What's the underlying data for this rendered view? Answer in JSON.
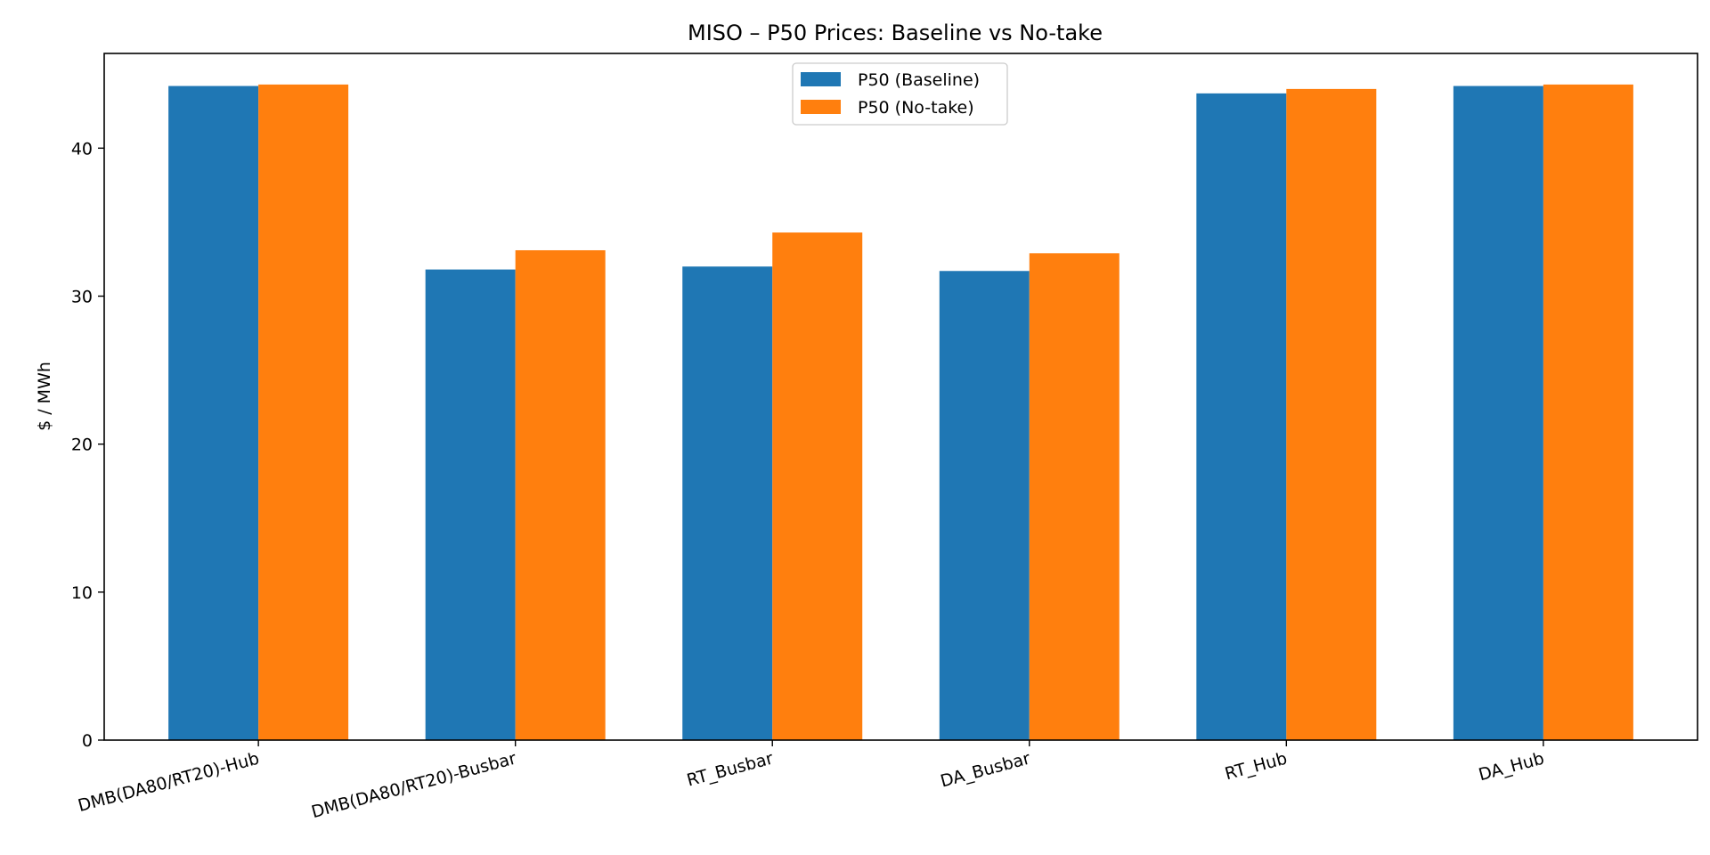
{
  "chart_data": {
    "type": "bar",
    "title": "MISO – P50 Prices: Baseline vs No-take",
    "xlabel": "",
    "ylabel": "$ / MWh",
    "ylim": [
      0,
      46.4
    ],
    "yticks": [
      0,
      10,
      20,
      30,
      40
    ],
    "categories": [
      "DMB(DA80/RT20)-Hub",
      "DMB(DA80/RT20)-Busbar",
      "RT_Busbar",
      "DA_Busbar",
      "RT_Hub",
      "DA_Hub"
    ],
    "series": [
      {
        "name": "P50 (Baseline)",
        "color": "#1f77b4",
        "values": [
          44.2,
          31.8,
          32.0,
          31.7,
          43.7,
          44.2
        ]
      },
      {
        "name": "P50 (No-take)",
        "color": "#ff7f0e",
        "values": [
          44.3,
          33.1,
          34.3,
          32.9,
          44.0,
          44.3
        ]
      }
    ],
    "legend": "top-center",
    "grid": false
  }
}
